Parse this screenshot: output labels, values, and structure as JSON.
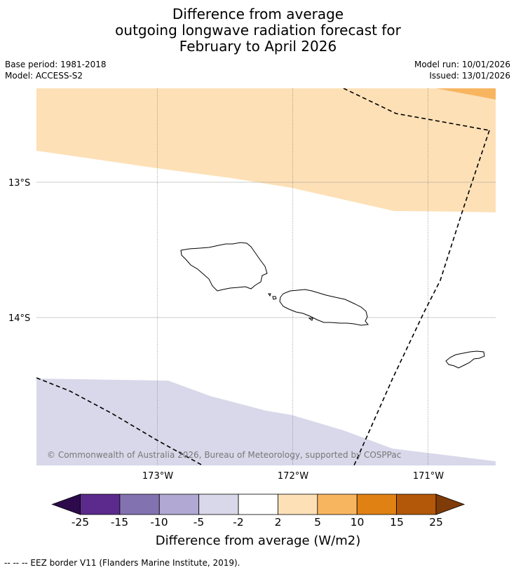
{
  "title": {
    "line1": "Difference from average",
    "line2": "outgoing longwave radiation forecast for",
    "line3": "February to April 2026"
  },
  "meta": {
    "base_period": "Base period: 1981-2018",
    "model": "Model: ACCESS-S2",
    "model_run": "Model run: 10/01/2026",
    "issued": "Issued: 13/01/2026"
  },
  "map": {
    "lat_labels": [
      "13°S",
      "14°S"
    ],
    "lon_labels": [
      "173°W",
      "172°W",
      "171°W"
    ],
    "copyright": "© Commonwealth of Australia 2026, Bureau of Meteorology, supported by COSPPac"
  },
  "colorbar": {
    "tick_labels": [
      "-25",
      "-15",
      "-10",
      "-5",
      "-2",
      "2",
      "5",
      "10",
      "15",
      "25"
    ],
    "colors": [
      "#2d0a4b",
      "#5b2a8c",
      "#8272b0",
      "#b1a8d3",
      "#d8d8ea",
      "#ffffff",
      "#fde0b6",
      "#f8b560",
      "#e08114",
      "#b35808",
      "#7f3b08"
    ],
    "title": "Difference from average (W/m2)"
  },
  "footer": {
    "legend": "--  --  -- EEZ border V11 (Flanders Marine Institute, 2019)."
  }
}
